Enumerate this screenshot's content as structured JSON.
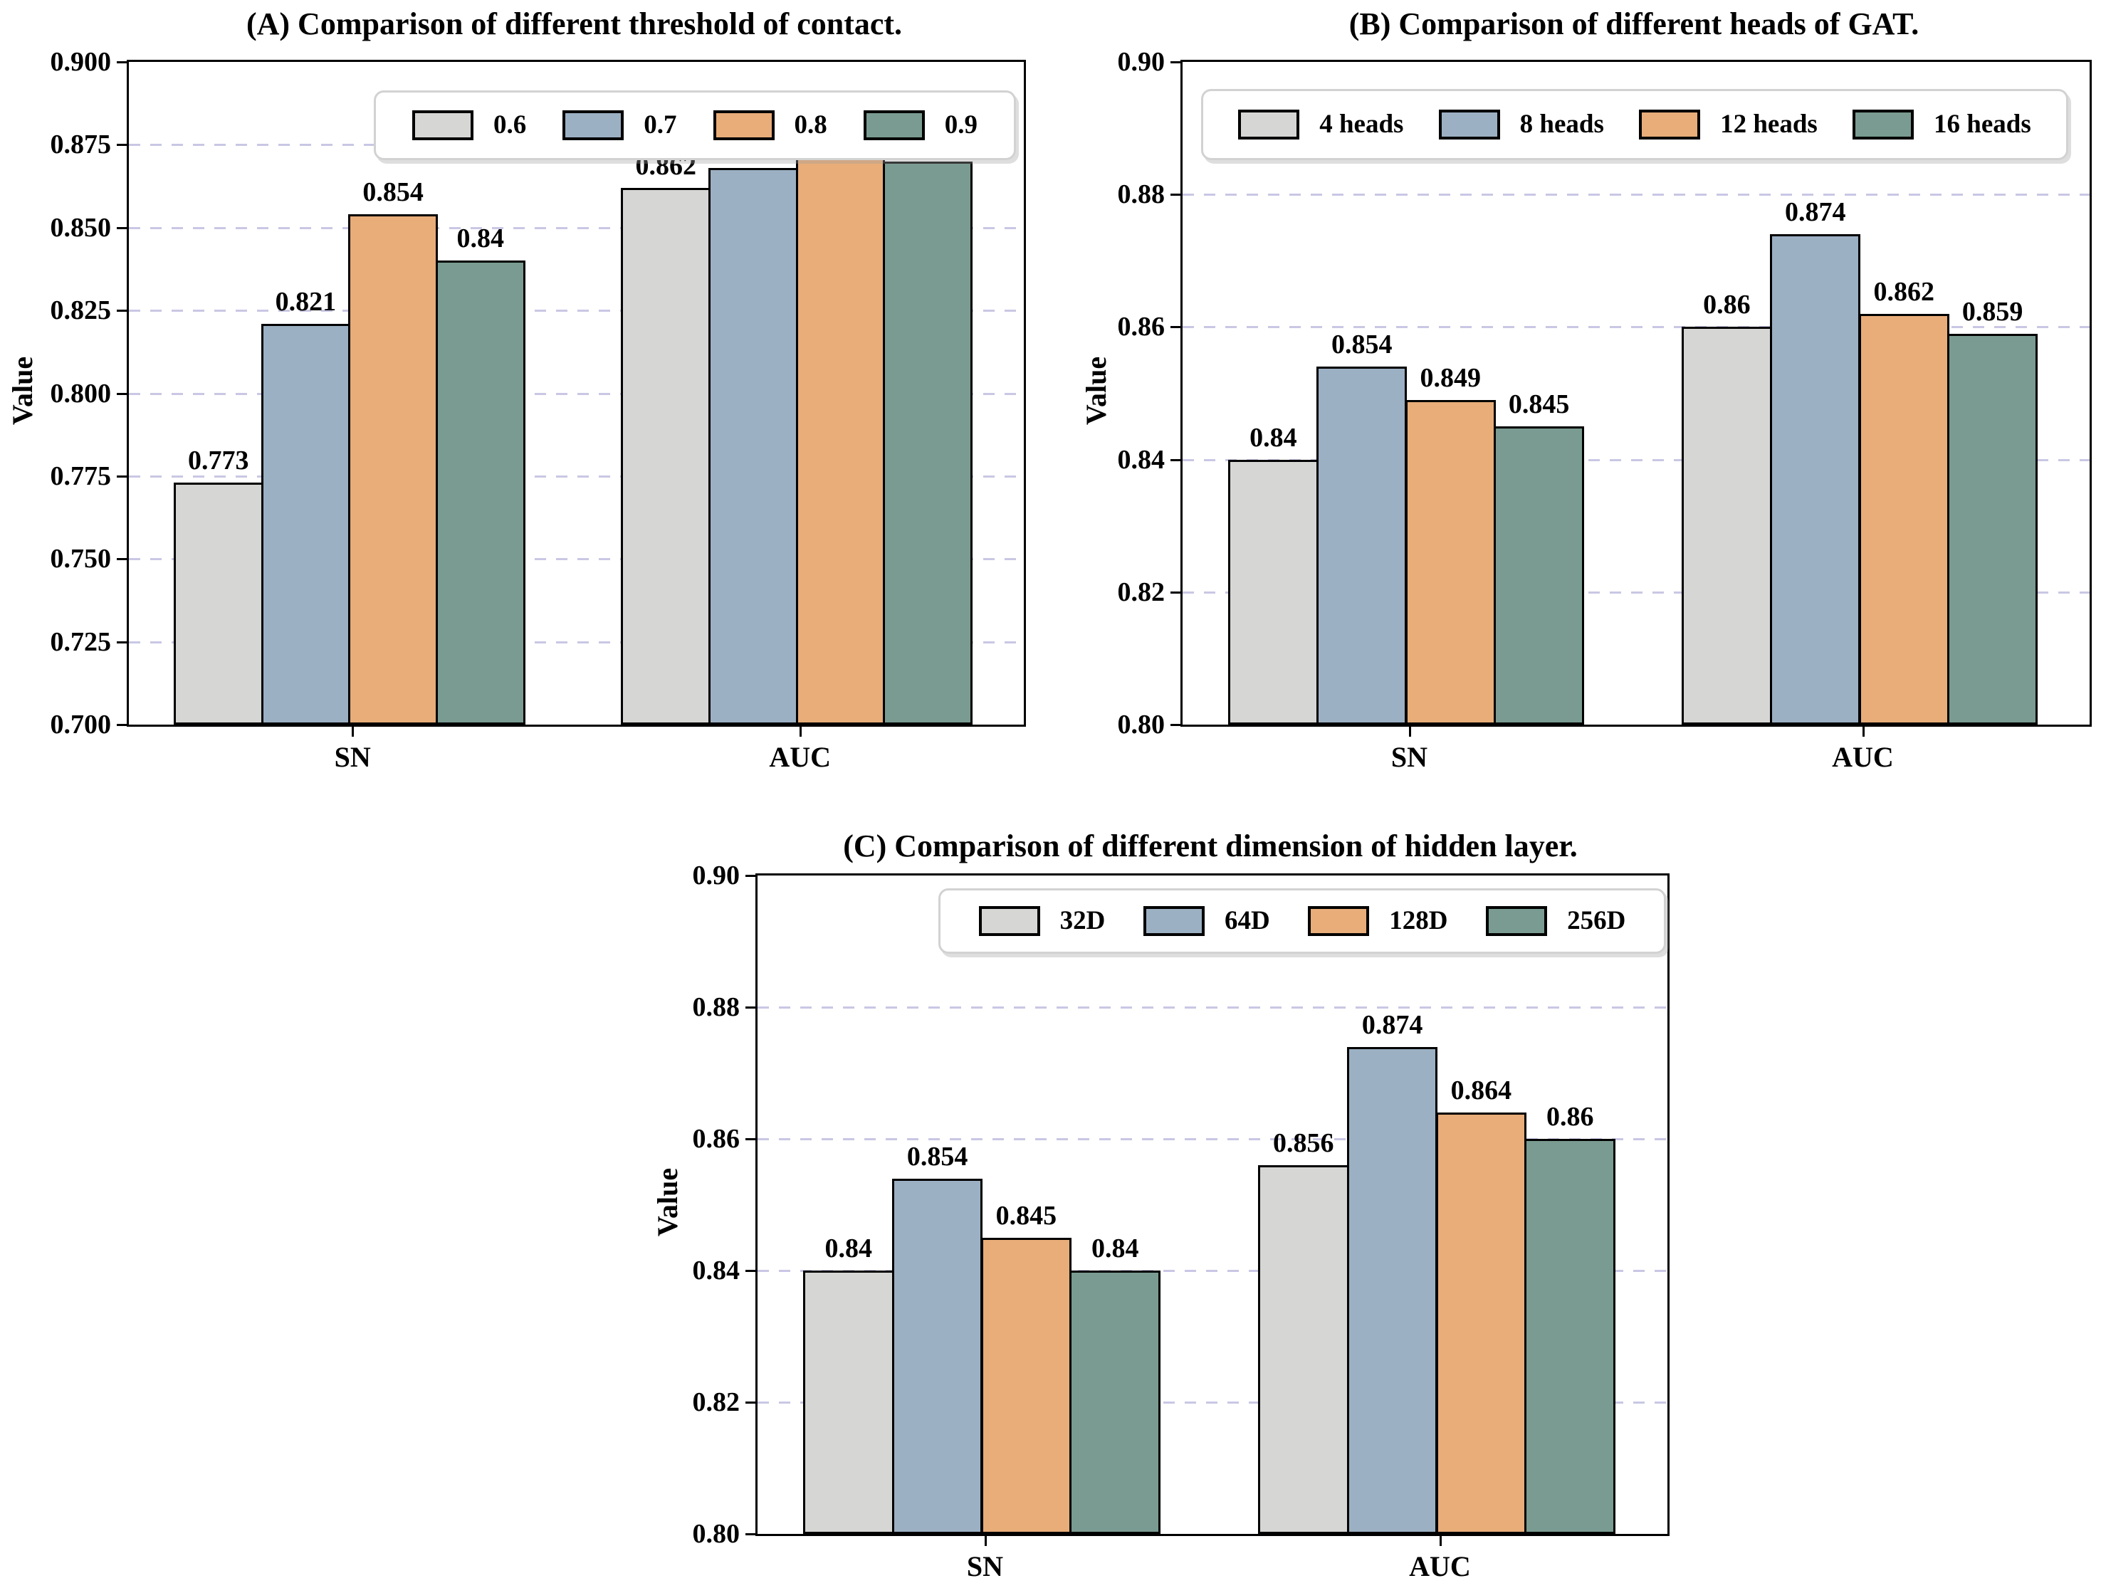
{
  "figure": {
    "background": "#ffffff",
    "text_color": "#000000",
    "gridline_color": "#c9c7e4"
  },
  "chart_data": [
    {
      "type": "bar",
      "title": "(A) Comparison of different threshold of contact.",
      "xlabel": "",
      "ylabel": "Value",
      "categories": [
        "SN",
        "AUC"
      ],
      "ylim": [
        0.7,
        0.9
      ],
      "yticks": [
        "0.700",
        "0.725",
        "0.750",
        "0.775",
        "0.800",
        "0.825",
        "0.850",
        "0.875",
        "0.900"
      ],
      "grid": true,
      "legend_position": "upper right",
      "series": [
        {
          "name": "0.6",
          "color": "#d6d6d4",
          "values": [
            0.773,
            0.862
          ],
          "labels": [
            "0.773",
            "0.862"
          ]
        },
        {
          "name": "0.7",
          "color": "#9cb0c3",
          "values": [
            0.821,
            0.868
          ],
          "labels": [
            "0.821",
            "0.868"
          ]
        },
        {
          "name": "0.8",
          "color": "#e8ad79",
          "values": [
            0.854,
            0.874
          ],
          "labels": [
            "0.854",
            "0.874"
          ]
        },
        {
          "name": "0.9",
          "color": "#7a9b91",
          "values": [
            0.84,
            0.87
          ],
          "labels": [
            "0.84",
            "0.87"
          ]
        }
      ]
    },
    {
      "type": "bar",
      "title": "(B) Comparison of different heads of GAT.",
      "xlabel": "",
      "ylabel": "Value",
      "categories": [
        "SN",
        "AUC"
      ],
      "ylim": [
        0.8,
        0.9
      ],
      "yticks": [
        "0.80",
        "0.82",
        "0.84",
        "0.86",
        "0.88",
        "0.90"
      ],
      "grid": true,
      "legend_position": "upper center",
      "series": [
        {
          "name": "4 heads",
          "color": "#d6d6d4",
          "values": [
            0.84,
            0.86
          ],
          "labels": [
            "0.84",
            "0.86"
          ]
        },
        {
          "name": "8 heads",
          "color": "#9cb0c3",
          "values": [
            0.854,
            0.874
          ],
          "labels": [
            "0.854",
            "0.874"
          ]
        },
        {
          "name": "12 heads",
          "color": "#e8ad79",
          "values": [
            0.849,
            0.862
          ],
          "labels": [
            "0.849",
            "0.862"
          ]
        },
        {
          "name": "16 heads",
          "color": "#7a9b91",
          "values": [
            0.845,
            0.859
          ],
          "labels": [
            "0.845",
            "0.859"
          ]
        }
      ]
    },
    {
      "type": "bar",
      "title": "(C) Comparison of different dimension of hidden layer.",
      "xlabel": "",
      "ylabel": "Value",
      "categories": [
        "SN",
        "AUC"
      ],
      "ylim": [
        0.8,
        0.9
      ],
      "yticks": [
        "0.80",
        "0.82",
        "0.84",
        "0.86",
        "0.88",
        "0.90"
      ],
      "grid": true,
      "legend_position": "upper center",
      "series": [
        {
          "name": "32D",
          "color": "#d6d6d4",
          "values": [
            0.84,
            0.856
          ],
          "labels": [
            "0.84",
            "0.856"
          ]
        },
        {
          "name": "64D",
          "color": "#9cb0c3",
          "values": [
            0.854,
            0.874
          ],
          "labels": [
            "0.854",
            "0.874"
          ]
        },
        {
          "name": "128D",
          "color": "#e8ad79",
          "values": [
            0.845,
            0.864
          ],
          "labels": [
            "0.845",
            "0.864"
          ]
        },
        {
          "name": "256D",
          "color": "#7a9b91",
          "values": [
            0.84,
            0.86
          ],
          "labels": [
            "0.84",
            "0.86"
          ]
        }
      ]
    }
  ]
}
